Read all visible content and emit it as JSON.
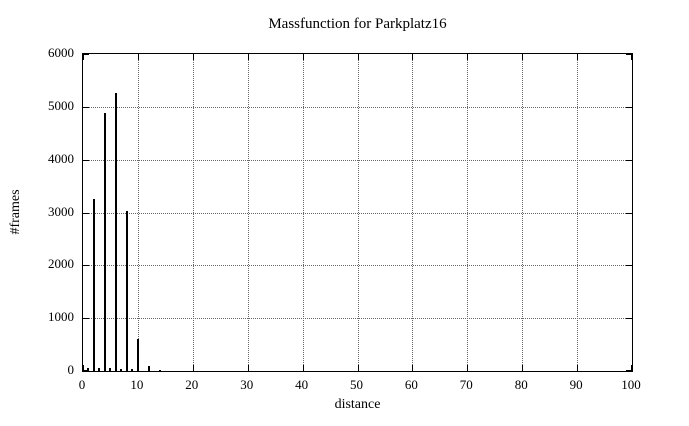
{
  "title": "Massfunction for Parkplatz16",
  "chart_data": {
    "type": "bar",
    "style": "impulses",
    "title": "Massfunction for Parkplatz16",
    "xlabel": "distance",
    "ylabel": "#frames",
    "xlim": [
      0,
      100
    ],
    "ylim": [
      0,
      6000
    ],
    "x_ticks": [
      0,
      10,
      20,
      30,
      40,
      50,
      60,
      70,
      80,
      90,
      100
    ],
    "y_ticks": [
      0,
      1000,
      2000,
      3000,
      4000,
      5000,
      6000
    ],
    "grid": true,
    "legend": "none",
    "points": [
      {
        "x": 1,
        "y": 60
      },
      {
        "x": 2,
        "y": 3250
      },
      {
        "x": 3,
        "y": 60
      },
      {
        "x": 4,
        "y": 4890
      },
      {
        "x": 5,
        "y": 60
      },
      {
        "x": 6,
        "y": 5270
      },
      {
        "x": 7,
        "y": 45
      },
      {
        "x": 8,
        "y": 3020
      },
      {
        "x": 9,
        "y": 45
      },
      {
        "x": 10,
        "y": 600
      },
      {
        "x": 12,
        "y": 100
      },
      {
        "x": 14,
        "y": 20
      }
    ]
  },
  "colors": {
    "background": "#ffffff",
    "bar": "#000000",
    "axis": "#000000",
    "grid": "#666666",
    "text": "#000000"
  }
}
